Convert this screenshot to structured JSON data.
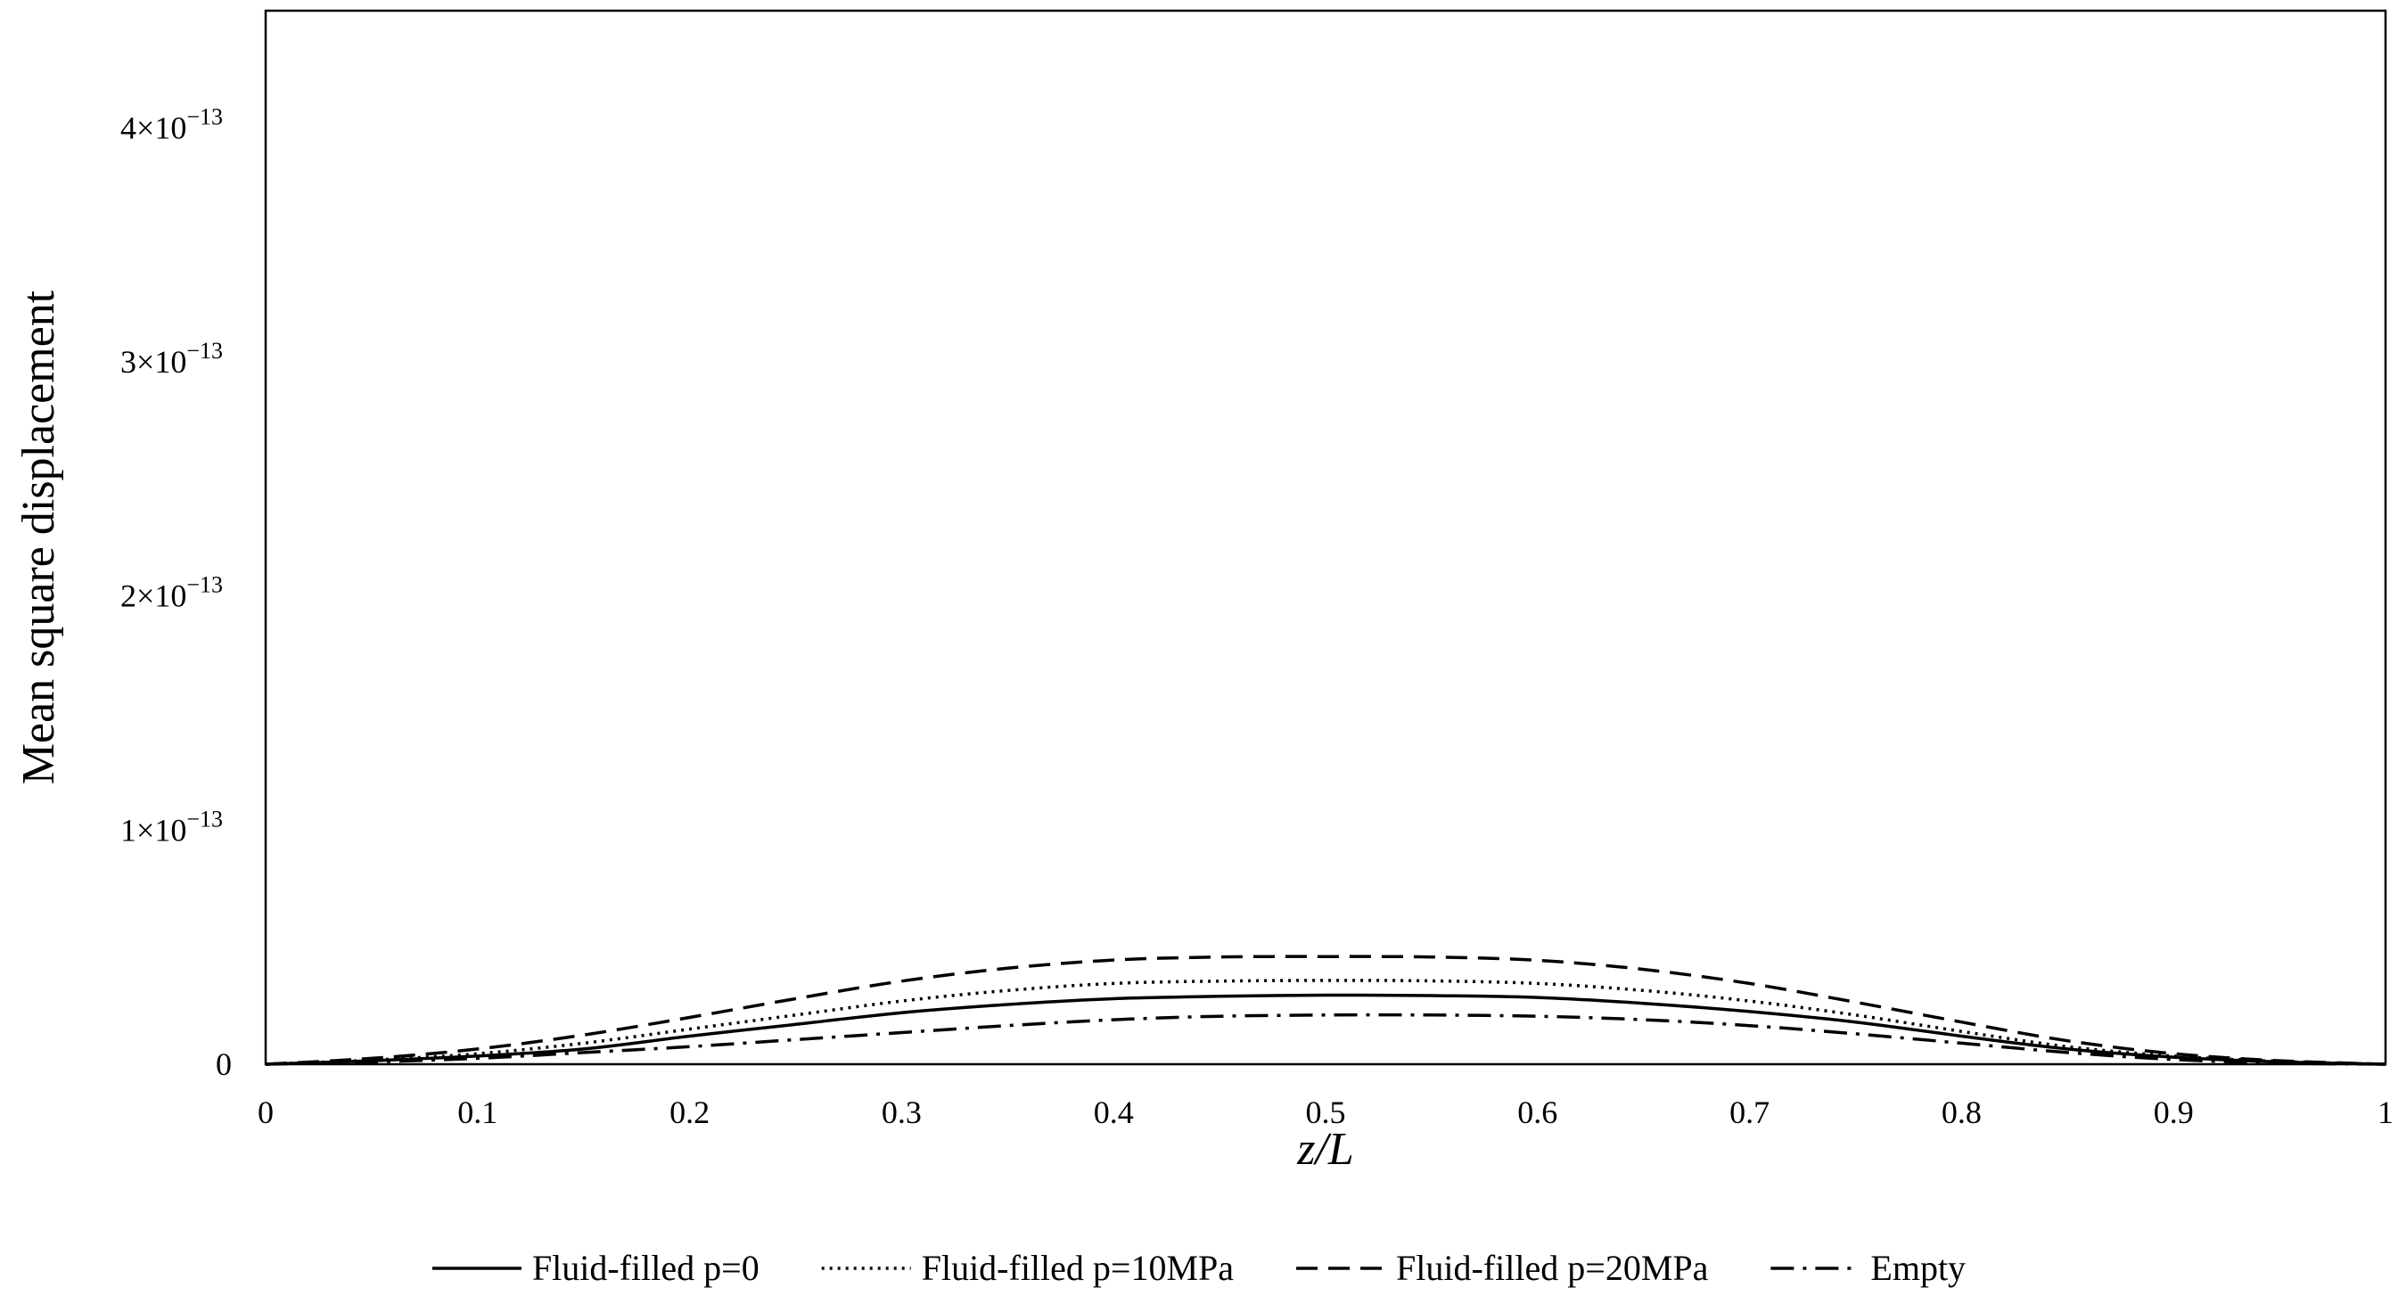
{
  "chart_data": {
    "type": "line",
    "title": "",
    "xlabel": "z/L",
    "ylabel": "Mean square displacement",
    "xlim": [
      0,
      1
    ],
    "ylim": [
      0,
      4.5e-13
    ],
    "x_ticks": [
      0,
      0.1,
      0.2,
      0.3,
      0.4,
      0.5,
      0.6,
      0.7,
      0.8,
      0.9,
      1
    ],
    "x_tick_labels": [
      "0",
      "0.1",
      "0.2",
      "0.3",
      "0.4",
      "0.5",
      "0.6",
      "0.7",
      "0.8",
      "0.9",
      "1"
    ],
    "y_ticks": [
      {
        "value": 0,
        "mantissa": "0",
        "exponent": ""
      },
      {
        "value": 1e-13,
        "mantissa": "1×10",
        "exponent": "−13"
      },
      {
        "value": 2e-13,
        "mantissa": "2×10",
        "exponent": "−13"
      },
      {
        "value": 3e-13,
        "mantissa": "3×10",
        "exponent": "−13"
      },
      {
        "value": 4e-13,
        "mantissa": "4×10",
        "exponent": "−13"
      }
    ],
    "grid": false,
    "legend_position": "bottom",
    "x": [
      0,
      0.05,
      0.1,
      0.15,
      0.2,
      0.25,
      0.3,
      0.35,
      0.4,
      0.45,
      0.5,
      0.55,
      0.6,
      0.65,
      0.7,
      0.75,
      0.8,
      0.85,
      0.9,
      0.95,
      1
    ],
    "series": [
      {
        "name": "Fluid-filled p=0",
        "style": "solid",
        "values": [
          0,
          1.5e-15,
          3.5e-15,
          6.5e-15,
          1.2e-14,
          1.7e-14,
          2.2e-14,
          2.55e-14,
          2.8e-14,
          2.9e-14,
          2.95e-14,
          2.93e-14,
          2.85e-14,
          2.6e-14,
          2.25e-14,
          1.8e-14,
          1.2e-14,
          6.5e-15,
          3e-15,
          1e-15,
          0
        ]
      },
      {
        "name": "Fluid-filled p=10MPa",
        "style": "dotted",
        "values": [
          0,
          1.8e-15,
          4.5e-15,
          9e-15,
          1.5e-14,
          2.1e-14,
          2.7e-14,
          3.15e-14,
          3.45e-14,
          3.55e-14,
          3.58e-14,
          3.56e-14,
          3.45e-14,
          3.15e-14,
          2.7e-14,
          2.1e-14,
          1.4e-14,
          7.5e-15,
          3.5e-15,
          1.2e-15,
          0
        ]
      },
      {
        "name": "Fluid-filled p=20MPa",
        "style": "dashed",
        "values": [
          0,
          2.5e-15,
          6.5e-15,
          1.25e-14,
          2e-14,
          2.8e-14,
          3.55e-14,
          4.1e-14,
          4.45e-14,
          4.58e-14,
          4.6e-14,
          4.58e-14,
          4.44e-14,
          4.05e-14,
          3.45e-14,
          2.65e-14,
          1.8e-14,
          1e-14,
          4.5e-15,
          1.5e-15,
          0
        ]
      },
      {
        "name": "Empty",
        "style": "dashdot",
        "values": [
          0,
          1e-15,
          2.5e-15,
          5e-15,
          7.5e-15,
          1.05e-14,
          1.35e-14,
          1.65e-14,
          1.9e-14,
          2.05e-14,
          2.1e-14,
          2.1e-14,
          2.05e-14,
          1.9e-14,
          1.65e-14,
          1.3e-14,
          9e-15,
          5e-15,
          2e-15,
          5e-16,
          0
        ]
      }
    ]
  }
}
